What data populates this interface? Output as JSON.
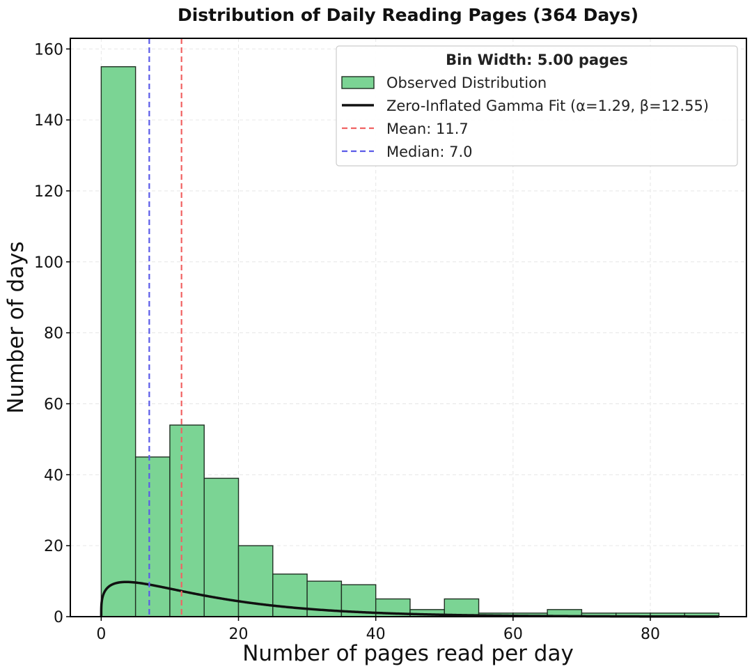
{
  "chart_data": {
    "type": "bar",
    "title": "Distribution of Daily Reading Pages (364 Days)",
    "xlabel": "Number of pages read per day",
    "ylabel": "Number of days",
    "xlim": [
      -4.5,
      94
    ],
    "ylim": [
      0,
      163
    ],
    "xticks": [
      0,
      20,
      40,
      60,
      80
    ],
    "yticks": [
      0,
      20,
      40,
      60,
      80,
      100,
      120,
      140,
      160
    ],
    "grid": true,
    "bin_width": 5,
    "bins": [
      {
        "x0": 0,
        "x1": 5,
        "count": 155
      },
      {
        "x0": 5,
        "x1": 10,
        "count": 45
      },
      {
        "x0": 10,
        "x1": 15,
        "count": 54
      },
      {
        "x0": 15,
        "x1": 20,
        "count": 39
      },
      {
        "x0": 20,
        "x1": 25,
        "count": 20
      },
      {
        "x0": 25,
        "x1": 30,
        "count": 12
      },
      {
        "x0": 30,
        "x1": 35,
        "count": 10
      },
      {
        "x0": 35,
        "x1": 40,
        "count": 9
      },
      {
        "x0": 40,
        "x1": 45,
        "count": 5
      },
      {
        "x0": 45,
        "x1": 50,
        "count": 2
      },
      {
        "x0": 50,
        "x1": 55,
        "count": 5
      },
      {
        "x0": 55,
        "x1": 60,
        "count": 1
      },
      {
        "x0": 60,
        "x1": 65,
        "count": 1
      },
      {
        "x0": 65,
        "x1": 70,
        "count": 2
      },
      {
        "x0": 70,
        "x1": 75,
        "count": 1
      },
      {
        "x0": 75,
        "x1": 80,
        "count": 1
      },
      {
        "x0": 80,
        "x1": 85,
        "count": 1
      },
      {
        "x0": 85,
        "x1": 90,
        "count": 1
      }
    ],
    "fit": {
      "alpha": 1.29,
      "beta": 12.55,
      "scale_days": 211,
      "x_range": [
        0,
        90
      ]
    },
    "mean": 11.7,
    "median": 7.0,
    "colors": {
      "bar_fill": "#7bd494",
      "bar_edge": "#1f2f22",
      "fit_line": "#111111",
      "mean_line": "#f06262",
      "median_line": "#5a5ae8",
      "grid": "#e6e6e6"
    },
    "legend": {
      "placement": "top-right",
      "title": "Bin Width: 5.00 pages",
      "items": [
        {
          "kind": "patch",
          "label": "Observed Distribution"
        },
        {
          "kind": "line",
          "label": "Zero-Inflated Gamma Fit (α=1.29, β=12.55)"
        },
        {
          "kind": "dashed-mean",
          "label": "Mean: 11.7"
        },
        {
          "kind": "dashed-median",
          "label": "Median: 7.0"
        }
      ]
    }
  }
}
